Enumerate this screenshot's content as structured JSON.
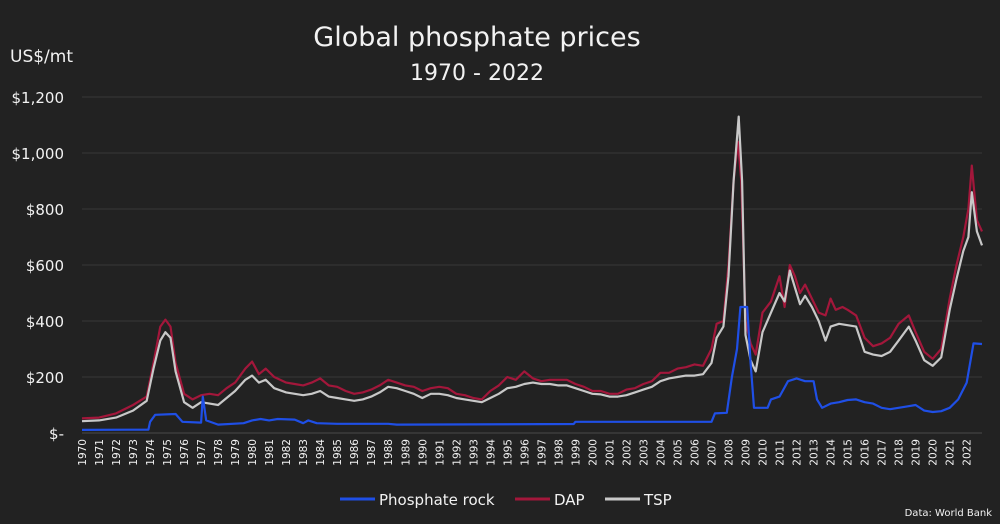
{
  "chart_data": {
    "type": "line",
    "title": "Global phosphate prices",
    "subtitle": "1970 - 2022",
    "ylabel": "US$/mt",
    "xlabel": "",
    "ylim": [
      0,
      1200
    ],
    "xlim": [
      1970,
      2022.9
    ],
    "y_ticks": [
      0,
      200,
      400,
      600,
      800,
      1000,
      1200
    ],
    "y_tick_labels": [
      "$-",
      "$200",
      "$400",
      "$600",
      "$800",
      "$1,000",
      "$1,200"
    ],
    "x_tick_labels": [
      "1970",
      "1971",
      "1972",
      "1973",
      "1974",
      "1975",
      "1976",
      "1977",
      "1978",
      "1979",
      "1980",
      "1981",
      "1982",
      "1983",
      "1984",
      "1985",
      "1986",
      "1987",
      "1988",
      "1989",
      "1990",
      "1991",
      "1992",
      "1993",
      "1994",
      "1995",
      "1996",
      "1997",
      "1998",
      "1999",
      "2000",
      "2001",
      "2002",
      "2003",
      "2004",
      "2005",
      "2006",
      "2007",
      "2008",
      "2009",
      "2010",
      "2011",
      "2012",
      "2013",
      "2014",
      "2015",
      "2016",
      "2017",
      "2018",
      "2019",
      "2020",
      "2021",
      "2022"
    ],
    "grid": true,
    "legend_position": "bottom",
    "source": "Data: World Bank",
    "series": [
      {
        "name": "Phosphate rock",
        "color": "#1f4fe6",
        "points": [
          [
            1970,
            11
          ],
          [
            1973.9,
            12
          ],
          [
            1974,
            40
          ],
          [
            1974.3,
            65
          ],
          [
            1975.5,
            68
          ],
          [
            1975.9,
            40
          ],
          [
            1977,
            37
          ],
          [
            1977.1,
            130
          ],
          [
            1977.3,
            45
          ],
          [
            1978,
            30
          ],
          [
            1979.5,
            35
          ],
          [
            1980,
            45
          ],
          [
            1980.5,
            50
          ],
          [
            1981,
            45
          ],
          [
            1981.5,
            50
          ],
          [
            1982.5,
            48
          ],
          [
            1983,
            35
          ],
          [
            1983.3,
            45
          ],
          [
            1983.8,
            35
          ],
          [
            1985,
            33
          ],
          [
            1988,
            33
          ],
          [
            1988.5,
            30
          ],
          [
            1998.9,
            32
          ],
          [
            1999,
            40
          ],
          [
            2007,
            40
          ],
          [
            2007.2,
            70
          ],
          [
            2007.9,
            72
          ],
          [
            2008.2,
            200
          ],
          [
            2008.5,
            300
          ],
          [
            2008.7,
            450
          ],
          [
            2009.1,
            450
          ],
          [
            2009.3,
            250
          ],
          [
            2009.5,
            90
          ],
          [
            2010.3,
            90
          ],
          [
            2010.5,
            120
          ],
          [
            2011,
            130
          ],
          [
            2011.5,
            185
          ],
          [
            2012,
            195
          ],
          [
            2012.5,
            185
          ],
          [
            2013,
            185
          ],
          [
            2013.2,
            120
          ],
          [
            2013.5,
            90
          ],
          [
            2014,
            105
          ],
          [
            2014.5,
            110
          ],
          [
            2015,
            118
          ],
          [
            2015.5,
            120
          ],
          [
            2016,
            110
          ],
          [
            2016.5,
            105
          ],
          [
            2017,
            90
          ],
          [
            2017.5,
            85
          ],
          [
            2018,
            90
          ],
          [
            2018.5,
            95
          ],
          [
            2019,
            100
          ],
          [
            2019.5,
            80
          ],
          [
            2020,
            75
          ],
          [
            2020.5,
            78
          ],
          [
            2021,
            90
          ],
          [
            2021.5,
            120
          ],
          [
            2022,
            180
          ],
          [
            2022.4,
            320
          ],
          [
            2022.9,
            318
          ]
        ]
      },
      {
        "name": "DAP",
        "color": "#a3173b",
        "points": [
          [
            1970,
            52
          ],
          [
            1971,
            55
          ],
          [
            1972,
            70
          ],
          [
            1973,
            100
          ],
          [
            1973.8,
            130
          ],
          [
            1974.2,
            250
          ],
          [
            1974.6,
            380
          ],
          [
            1974.9,
            405
          ],
          [
            1975.2,
            380
          ],
          [
            1975.5,
            250
          ],
          [
            1976,
            140
          ],
          [
            1976.5,
            120
          ],
          [
            1977,
            135
          ],
          [
            1977.5,
            140
          ],
          [
            1978,
            135
          ],
          [
            1978.5,
            160
          ],
          [
            1979,
            180
          ],
          [
            1979.6,
            230
          ],
          [
            1980,
            255
          ],
          [
            1980.4,
            210
          ],
          [
            1980.8,
            230
          ],
          [
            1981.3,
            200
          ],
          [
            1982,
            180
          ],
          [
            1982.5,
            175
          ],
          [
            1983,
            170
          ],
          [
            1983.5,
            180
          ],
          [
            1984,
            195
          ],
          [
            1984.5,
            170
          ],
          [
            1985,
            165
          ],
          [
            1985.5,
            150
          ],
          [
            1986,
            140
          ],
          [
            1986.5,
            145
          ],
          [
            1987,
            155
          ],
          [
            1987.5,
            170
          ],
          [
            1988,
            190
          ],
          [
            1988.5,
            180
          ],
          [
            1989,
            170
          ],
          [
            1989.5,
            165
          ],
          [
            1990,
            150
          ],
          [
            1990.5,
            160
          ],
          [
            1991,
            165
          ],
          [
            1991.5,
            160
          ],
          [
            1992,
            140
          ],
          [
            1992.5,
            135
          ],
          [
            1993,
            125
          ],
          [
            1993.5,
            120
          ],
          [
            1994,
            150
          ],
          [
            1994.5,
            170
          ],
          [
            1995,
            200
          ],
          [
            1995.5,
            190
          ],
          [
            1996,
            220
          ],
          [
            1996.5,
            195
          ],
          [
            1997,
            185
          ],
          [
            1997.5,
            190
          ],
          [
            1998,
            190
          ],
          [
            1998.5,
            190
          ],
          [
            1999,
            175
          ],
          [
            1999.5,
            165
          ],
          [
            2000,
            150
          ],
          [
            2000.5,
            150
          ],
          [
            2001,
            140
          ],
          [
            2001.5,
            140
          ],
          [
            2002,
            155
          ],
          [
            2002.5,
            160
          ],
          [
            2003,
            175
          ],
          [
            2003.5,
            185
          ],
          [
            2004,
            215
          ],
          [
            2004.5,
            215
          ],
          [
            2005,
            230
          ],
          [
            2005.5,
            235
          ],
          [
            2006,
            245
          ],
          [
            2006.5,
            240
          ],
          [
            2007,
            300
          ],
          [
            2007.3,
            390
          ],
          [
            2007.7,
            400
          ],
          [
            2008,
            600
          ],
          [
            2008.3,
            900
          ],
          [
            2008.55,
            1040
          ],
          [
            2008.75,
            900
          ],
          [
            2009,
            400
          ],
          [
            2009.3,
            320
          ],
          [
            2009.6,
            280
          ],
          [
            2010,
            430
          ],
          [
            2010.5,
            470
          ],
          [
            2011,
            560
          ],
          [
            2011.3,
            450
          ],
          [
            2011.6,
            600
          ],
          [
            2011.9,
            560
          ],
          [
            2012.2,
            500
          ],
          [
            2012.5,
            530
          ],
          [
            2012.9,
            480
          ],
          [
            2013.3,
            430
          ],
          [
            2013.7,
            420
          ],
          [
            2014,
            480
          ],
          [
            2014.3,
            440
          ],
          [
            2014.7,
            450
          ],
          [
            2015,
            440
          ],
          [
            2015.5,
            420
          ],
          [
            2016,
            340
          ],
          [
            2016.5,
            310
          ],
          [
            2017,
            320
          ],
          [
            2017.5,
            340
          ],
          [
            2018,
            390
          ],
          [
            2018.6,
            420
          ],
          [
            2019,
            360
          ],
          [
            2019.5,
            290
          ],
          [
            2020,
            265
          ],
          [
            2020.5,
            300
          ],
          [
            2021,
            480
          ],
          [
            2021.4,
            600
          ],
          [
            2021.8,
            700
          ],
          [
            2022.1,
            800
          ],
          [
            2022.3,
            955
          ],
          [
            2022.6,
            760
          ],
          [
            2022.9,
            720
          ]
        ]
      },
      {
        "name": "TSP",
        "color": "#c8c8c8",
        "points": [
          [
            1970,
            42
          ],
          [
            1971,
            45
          ],
          [
            1972,
            55
          ],
          [
            1973,
            80
          ],
          [
            1973.8,
            115
          ],
          [
            1974.2,
            230
          ],
          [
            1974.6,
            330
          ],
          [
            1974.9,
            360
          ],
          [
            1975.2,
            340
          ],
          [
            1975.5,
            220
          ],
          [
            1976,
            110
          ],
          [
            1976.5,
            90
          ],
          [
            1977,
            110
          ],
          [
            1977.5,
            105
          ],
          [
            1978,
            100
          ],
          [
            1978.5,
            125
          ],
          [
            1979,
            150
          ],
          [
            1979.6,
            190
          ],
          [
            1980,
            205
          ],
          [
            1980.4,
            180
          ],
          [
            1980.8,
            190
          ],
          [
            1981.3,
            160
          ],
          [
            1982,
            145
          ],
          [
            1982.5,
            140
          ],
          [
            1983,
            135
          ],
          [
            1983.5,
            140
          ],
          [
            1984,
            150
          ],
          [
            1984.5,
            130
          ],
          [
            1985,
            125
          ],
          [
            1985.5,
            120
          ],
          [
            1986,
            115
          ],
          [
            1986.5,
            120
          ],
          [
            1987,
            130
          ],
          [
            1987.5,
            145
          ],
          [
            1988,
            165
          ],
          [
            1988.5,
            160
          ],
          [
            1989,
            150
          ],
          [
            1989.5,
            140
          ],
          [
            1990,
            125
          ],
          [
            1990.5,
            140
          ],
          [
            1991,
            140
          ],
          [
            1991.5,
            135
          ],
          [
            1992,
            125
          ],
          [
            1992.5,
            120
          ],
          [
            1993,
            115
          ],
          [
            1993.5,
            110
          ],
          [
            1994,
            125
          ],
          [
            1994.5,
            140
          ],
          [
            1995,
            160
          ],
          [
            1995.5,
            165
          ],
          [
            1996,
            175
          ],
          [
            1996.5,
            180
          ],
          [
            1997,
            175
          ],
          [
            1997.5,
            175
          ],
          [
            1998,
            170
          ],
          [
            1998.5,
            170
          ],
          [
            1999,
            160
          ],
          [
            1999.5,
            150
          ],
          [
            2000,
            140
          ],
          [
            2000.5,
            138
          ],
          [
            2001,
            130
          ],
          [
            2001.5,
            130
          ],
          [
            2002,
            135
          ],
          [
            2002.5,
            145
          ],
          [
            2003,
            155
          ],
          [
            2003.5,
            165
          ],
          [
            2004,
            185
          ],
          [
            2004.5,
            195
          ],
          [
            2005,
            200
          ],
          [
            2005.5,
            205
          ],
          [
            2006,
            205
          ],
          [
            2006.5,
            210
          ],
          [
            2007,
            250
          ],
          [
            2007.3,
            340
          ],
          [
            2007.7,
            380
          ],
          [
            2008,
            560
          ],
          [
            2008.3,
            900
          ],
          [
            2008.6,
            1130
          ],
          [
            2008.8,
            900
          ],
          [
            2009,
            350
          ],
          [
            2009.3,
            260
          ],
          [
            2009.6,
            220
          ],
          [
            2010,
            360
          ],
          [
            2010.5,
            430
          ],
          [
            2011,
            500
          ],
          [
            2011.3,
            470
          ],
          [
            2011.6,
            580
          ],
          [
            2011.9,
            520
          ],
          [
            2012.2,
            460
          ],
          [
            2012.5,
            490
          ],
          [
            2012.9,
            450
          ],
          [
            2013.3,
            400
          ],
          [
            2013.7,
            330
          ],
          [
            2014,
            380
          ],
          [
            2014.5,
            390
          ],
          [
            2015,
            385
          ],
          [
            2015.5,
            380
          ],
          [
            2016,
            290
          ],
          [
            2016.5,
            280
          ],
          [
            2017,
            275
          ],
          [
            2017.5,
            290
          ],
          [
            2018,
            330
          ],
          [
            2018.6,
            380
          ],
          [
            2019,
            330
          ],
          [
            2019.5,
            260
          ],
          [
            2020,
            240
          ],
          [
            2020.5,
            270
          ],
          [
            2021,
            440
          ],
          [
            2021.4,
            550
          ],
          [
            2021.8,
            650
          ],
          [
            2022.1,
            700
          ],
          [
            2022.3,
            860
          ],
          [
            2022.6,
            720
          ],
          [
            2022.9,
            670
          ]
        ]
      }
    ]
  }
}
